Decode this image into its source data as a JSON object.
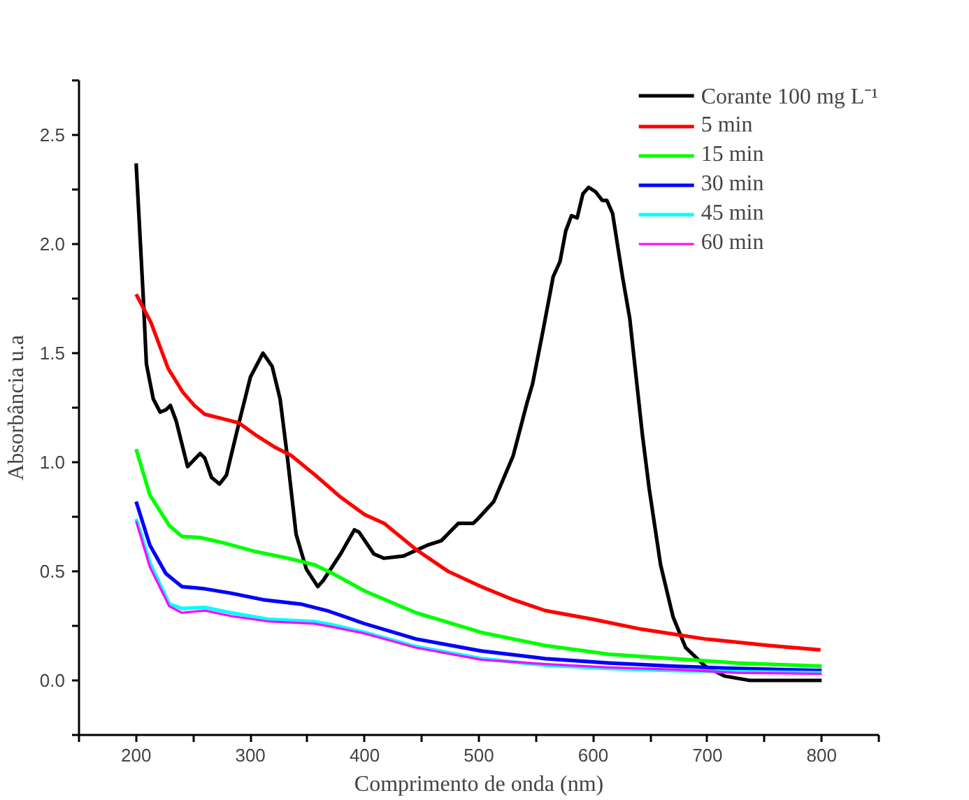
{
  "chart_data": {
    "type": "line",
    "xlabel": "Comprimento de onda (nm)",
    "ylabel": "Absorbância u.a",
    "xlim": [
      150,
      850
    ],
    "ylim": [
      -0.25,
      2.75
    ],
    "xticks": [
      {
        "value": 150,
        "label": null
      },
      200,
      {
        "value": 250,
        "label": null
      },
      300,
      {
        "value": 350,
        "label": null
      },
      400,
      {
        "value": 450,
        "label": null
      },
      500,
      {
        "value": 550,
        "label": null
      },
      600,
      {
        "value": 650,
        "label": null
      },
      700,
      {
        "value": 750,
        "label": null
      },
      800,
      {
        "value": 850,
        "label": null
      }
    ],
    "yticks": [
      {
        "value": -0.25,
        "label": null
      },
      {
        "value": 0,
        "label": "0.0"
      },
      {
        "value": 0.25,
        "label": null
      },
      0.5,
      {
        "value": 0.75,
        "label": null
      },
      {
        "value": 1,
        "label": "1.0"
      },
      {
        "value": 1.25,
        "label": null
      },
      1.5,
      {
        "value": 1.75,
        "label": null
      },
      {
        "value": 2,
        "label": "2.0"
      },
      {
        "value": 2.25,
        "label": null
      },
      2.5,
      {
        "value": 2.75,
        "label": null
      }
    ],
    "grid": false,
    "legend": "top right",
    "line_style": "solid",
    "marker": "none",
    "series": [
      {
        "name": "Corante 100 mg L⁻¹",
        "color": "#000000",
        "x": [
          200,
          206,
          209,
          215,
          221,
          226,
          230,
          235,
          245,
          256,
          260,
          266,
          273,
          279,
          290,
          300,
          311,
          319,
          326,
          332,
          340,
          349,
          359,
          364,
          379,
          391,
          395,
          408,
          417,
          434,
          455,
          467,
          482,
          495,
          499,
          513,
          530,
          542,
          547,
          556,
          565,
          571,
          576,
          581,
          586,
          591,
          596,
          602,
          608,
          612,
          617,
          623,
          626,
          632,
          643,
          649,
          659,
          670,
          681,
          698,
          715,
          737,
          800
        ],
        "values": [
          2.37,
          1.78,
          1.45,
          1.29,
          1.23,
          1.24,
          1.26,
          1.19,
          0.98,
          1.04,
          1.02,
          0.93,
          0.9,
          0.94,
          1.18,
          1.39,
          1.5,
          1.44,
          1.29,
          1.04,
          0.67,
          0.51,
          0.43,
          0.46,
          0.58,
          0.69,
          0.68,
          0.58,
          0.56,
          0.57,
          0.62,
          0.64,
          0.72,
          0.72,
          0.74,
          0.82,
          1.03,
          1.27,
          1.36,
          1.6,
          1.85,
          1.92,
          2.06,
          2.13,
          2.12,
          2.23,
          2.26,
          2.24,
          2.2,
          2.2,
          2.14,
          1.94,
          1.84,
          1.66,
          1.13,
          0.88,
          0.53,
          0.29,
          0.15,
          0.065,
          0.02,
          0.0,
          0.0
        ]
      },
      {
        "name": "5 min",
        "color": "#ff0000",
        "x": [
          200,
          213,
          228,
          241,
          251,
          260,
          275,
          290,
          306,
          321,
          336,
          357,
          379,
          400,
          417,
          445,
          473,
          502,
          530,
          558,
          600,
          642,
          698,
          754,
          799
        ],
        "values": [
          1.77,
          1.64,
          1.43,
          1.32,
          1.26,
          1.22,
          1.2,
          1.18,
          1.12,
          1.07,
          1.03,
          0.94,
          0.84,
          0.76,
          0.72,
          0.6,
          0.5,
          0.43,
          0.37,
          0.32,
          0.28,
          0.235,
          0.19,
          0.16,
          0.14
        ]
      },
      {
        "name": "15 min",
        "color": "#00ff00",
        "x": [
          200,
          212,
          229,
          240,
          256,
          277,
          305,
          333,
          356,
          372,
          400,
          445,
          502,
          558,
          614,
          670,
          726,
          800
        ],
        "values": [
          1.06,
          0.85,
          0.71,
          0.66,
          0.655,
          0.63,
          0.59,
          0.56,
          0.53,
          0.49,
          0.41,
          0.31,
          0.22,
          0.16,
          0.12,
          0.1,
          0.08,
          0.065
        ]
      },
      {
        "name": "30 min",
        "color": "#0000ff",
        "x": [
          200,
          212,
          226,
          240,
          260,
          283,
          311,
          344,
          367,
          400,
          445,
          502,
          558,
          614,
          670,
          726,
          800
        ],
        "values": [
          0.82,
          0.62,
          0.49,
          0.43,
          0.42,
          0.4,
          0.37,
          0.35,
          0.32,
          0.26,
          0.19,
          0.135,
          0.1,
          0.08,
          0.065,
          0.055,
          0.045
        ]
      },
      {
        "name": "45 min",
        "color": "#00ffff",
        "x": [
          200,
          212,
          229,
          240,
          260,
          283,
          316,
          356,
          372,
          400,
          445,
          502,
          558,
          614,
          670,
          726,
          800
        ],
        "values": [
          0.74,
          0.54,
          0.35,
          0.33,
          0.335,
          0.31,
          0.28,
          0.27,
          0.255,
          0.22,
          0.155,
          0.1,
          0.07,
          0.055,
          0.045,
          0.04,
          0.035
        ]
      },
      {
        "name": "60 min",
        "color": "#ff00ff",
        "x": [
          200,
          212,
          229,
          240,
          260,
          283,
          316,
          356,
          372,
          400,
          445,
          502,
          558,
          614,
          670,
          726,
          800
        ],
        "values": [
          0.73,
          0.52,
          0.34,
          0.31,
          0.32,
          0.295,
          0.27,
          0.26,
          0.245,
          0.215,
          0.15,
          0.095,
          0.075,
          0.06,
          0.05,
          0.035,
          0.03
        ]
      }
    ]
  }
}
